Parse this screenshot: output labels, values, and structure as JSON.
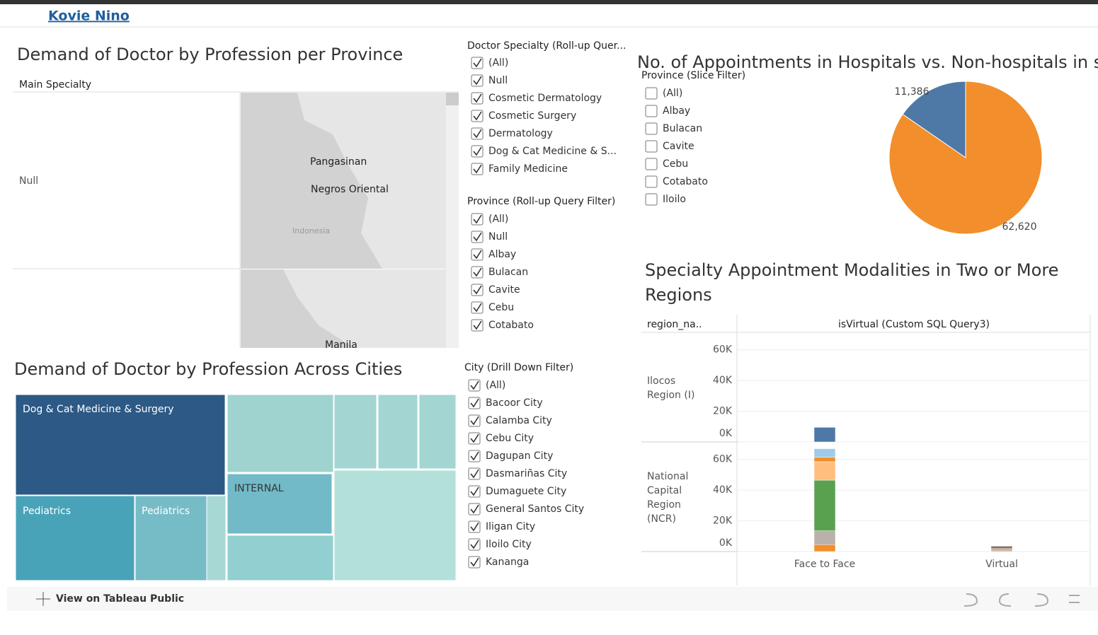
{
  "header": {
    "author": "Kovie Nino"
  },
  "map_panel": {
    "title": "Demand of Doctor by Profession per Province",
    "row_header": "Main Specialty",
    "row_label": "Null",
    "map_labels": [
      "Pangasinan",
      "Negros Oriental",
      "Indonesia",
      "Manila"
    ]
  },
  "specialty_filter": {
    "title": "Doctor Specialty (Roll-up Quer...",
    "checked": true,
    "items": [
      "(All)",
      "Null",
      "Cosmetic Dermatology",
      "Cosmetic Surgery",
      "Dermatology",
      "Dog & Cat Medicine & S...",
      "Family Medicine"
    ]
  },
  "province_filter": {
    "title": "Province (Roll-up Query Filter)",
    "checked": true,
    "items": [
      "(All)",
      "Null",
      "Albay",
      "Bulacan",
      "Cavite",
      "Cebu",
      "Cotabato"
    ]
  },
  "treemap": {
    "title": "Demand of Doctor by Profession Across Cities",
    "labels": [
      "Dog & Cat Medicine & Surgery",
      "Pediatrics",
      "Pediatrics",
      "INTERNAL"
    ]
  },
  "city_filter": {
    "title": "City (Drill Down Filter)",
    "checked": true,
    "items": [
      "(All)",
      "Bacoor City",
      "Calamba City",
      "Cebu City",
      "Dagupan City",
      "Dasmariñas City",
      "Dumaguete City",
      "General Santos City",
      "Iligan City",
      "Iloilo City",
      "Kananga"
    ]
  },
  "pie_chart": {
    "type": "pie",
    "title": "No. of Appointments in Hospitals vs. Non-hospitals in spec",
    "values": [
      11386,
      62620
    ],
    "value_labels": [
      "11,386",
      "62,620"
    ],
    "colors": [
      "#4e79a7",
      "#f28e2b"
    ]
  },
  "slice_filter": {
    "title": "Province (Slice Filter)",
    "checked": false,
    "items": [
      "(All)",
      "Albay",
      "Bulacan",
      "Cavite",
      "Cebu",
      "Cotabato",
      "Iloilo"
    ]
  },
  "modality_chart": {
    "type": "stacked-bar",
    "title": [
      "Specialty Appointment Modalities in Two or More",
      "Regions"
    ],
    "row_header": "region_na..",
    "column_header": "isVirtual (Custom SQL Query3)",
    "categories": [
      "Face to Face",
      "Virtual"
    ],
    "regions": [
      [
        "Ilocos",
        "Region (I)"
      ],
      [
        "National",
        "Capital",
        "Region",
        "(NCR)"
      ]
    ],
    "ylim": [
      0,
      70000
    ],
    "yticks": [
      {
        "value": 0,
        "label": "0K"
      },
      {
        "value": 20000,
        "label": "20K"
      },
      {
        "value": 40000,
        "label": "40K"
      },
      {
        "value": 60000,
        "label": "60K"
      }
    ],
    "stacks": [
      {
        "region": 0,
        "category": 0,
        "values": [
          9500
        ],
        "colors": [
          "#4e79a7"
        ]
      },
      {
        "region": 1,
        "category": 0,
        "values": [
          4500,
          9000,
          33000,
          12000,
          3000,
          5500
        ],
        "colors": [
          "#f28e2b",
          "#bab0ac",
          "#59a14f",
          "#ffbe7d",
          "#f28e2b",
          "#a0cbe8"
        ]
      },
      {
        "region": 1,
        "category": 1,
        "values": [
          1000,
          1000,
          1500
        ],
        "colors": [
          "#bab0ac",
          "#f28e2b",
          "#79706e"
        ]
      }
    ]
  },
  "footer": {
    "link": "View on Tableau Public"
  }
}
